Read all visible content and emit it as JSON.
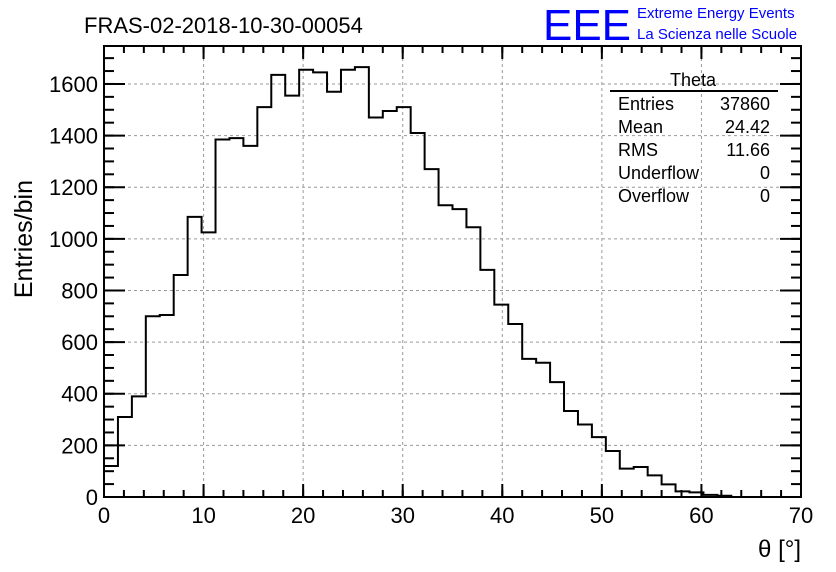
{
  "chart_data": {
    "type": "bar",
    "histogram": true,
    "title": "FRAS-02-2018-10-30-00054",
    "xlabel": "θ [°]",
    "ylabel": "Entries/bin",
    "xlim": [
      0,
      70
    ],
    "ylim": [
      0,
      1747
    ],
    "bin_width": 1.4,
    "x_ticks": [
      0,
      10,
      20,
      30,
      40,
      50,
      60,
      70
    ],
    "y_ticks": [
      0,
      200,
      400,
      600,
      800,
      1000,
      1200,
      1400,
      1600
    ],
    "grid": true,
    "values": [
      120,
      310,
      390,
      700,
      705,
      860,
      1085,
      1025,
      1385,
      1390,
      1360,
      1510,
      1635,
      1555,
      1655,
      1645,
      1570,
      1655,
      1665,
      1470,
      1495,
      1510,
      1410,
      1270,
      1130,
      1115,
      1045,
      880,
      745,
      670,
      535,
      520,
      445,
      333,
      281,
      232,
      178,
      110,
      116,
      84,
      49,
      22,
      18,
      8,
      5,
      0,
      0,
      0,
      0,
      0
    ],
    "line_color": "#000000",
    "stats_box": {
      "title": "Theta",
      "rows": [
        {
          "label": "Entries",
          "value": "37860"
        },
        {
          "label": "Mean",
          "value": "24.42"
        },
        {
          "label": "RMS",
          "value": "11.66"
        },
        {
          "label": "Underflow",
          "value": "0"
        },
        {
          "label": "Overflow",
          "value": "0"
        }
      ],
      "placement": "top-right"
    }
  },
  "logo": {
    "mark": "EEE",
    "line1": "Extreme Energy Events",
    "line2": "La Scienza nelle Scuole",
    "color": "#0000ff"
  }
}
